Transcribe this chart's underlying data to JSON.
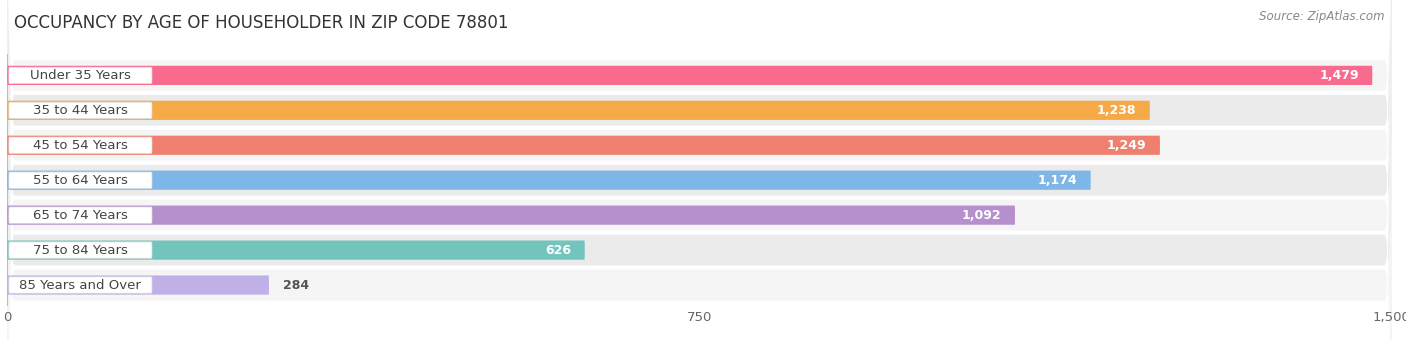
{
  "title": "OCCUPANCY BY AGE OF HOUSEHOLDER IN ZIP CODE 78801",
  "source": "Source: ZipAtlas.com",
  "categories": [
    "Under 35 Years",
    "35 to 44 Years",
    "45 to 54 Years",
    "55 to 64 Years",
    "65 to 74 Years",
    "75 to 84 Years",
    "85 Years and Over"
  ],
  "values": [
    1479,
    1238,
    1249,
    1174,
    1092,
    626,
    284
  ],
  "bar_colors": [
    "#F96B8E",
    "#F5A947",
    "#EF8070",
    "#7EB6E8",
    "#B590CC",
    "#72C4BC",
    "#C0B0E8"
  ],
  "background_color": "#FFFFFF",
  "row_bg_even": "#F5F5F5",
  "row_bg_odd": "#EBEBEB",
  "xlim": [
    0,
    1500
  ],
  "xticks": [
    0,
    750,
    1500
  ],
  "title_fontsize": 12,
  "label_fontsize": 9.5,
  "value_fontsize": 9,
  "source_fontsize": 8.5,
  "bar_height": 0.55
}
